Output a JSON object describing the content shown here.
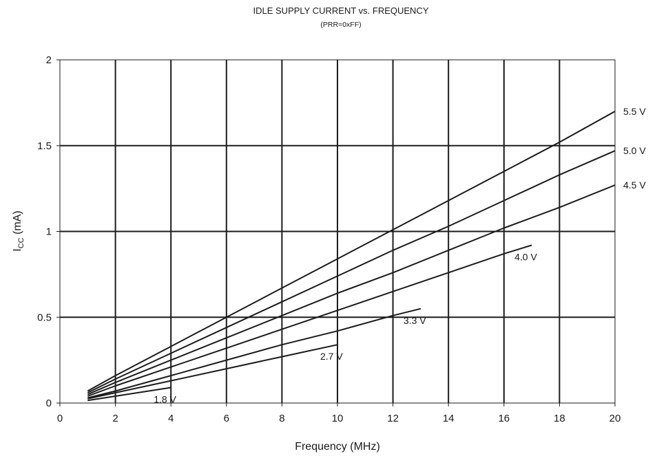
{
  "chart_data": {
    "type": "line",
    "title": "IDLE SUPPLY CURRENT vs. FREQUENCY",
    "subtitle": "(PRR=0xFF)",
    "xlabel": "Frequency (MHz)",
    "ylabel": {
      "main": "I",
      "sub": "CC",
      "unit": " (mA)"
    },
    "xlim": [
      0,
      20
    ],
    "ylim": [
      0,
      2
    ],
    "xticks": [
      "0",
      "2",
      "4",
      "6",
      "8",
      "10",
      "12",
      "14",
      "16",
      "18",
      "20"
    ],
    "yticks": [
      "0",
      "0.5",
      "1",
      "1.5",
      "2"
    ],
    "grid": true,
    "series": [
      {
        "name": "5.5 V",
        "x": [
          1,
          2,
          4,
          6,
          8,
          10,
          12,
          14,
          16,
          18,
          20
        ],
        "y": [
          0.07,
          0.16,
          0.33,
          0.5,
          0.67,
          0.84,
          1.01,
          1.18,
          1.35,
          1.52,
          1.7
        ]
      },
      {
        "name": "5.0 V",
        "x": [
          1,
          2,
          4,
          6,
          8,
          10,
          12,
          14,
          16,
          18,
          20
        ],
        "y": [
          0.06,
          0.14,
          0.29,
          0.44,
          0.59,
          0.74,
          0.89,
          1.03,
          1.18,
          1.33,
          1.47
        ]
      },
      {
        "name": "4.5 V",
        "x": [
          1,
          2,
          4,
          6,
          8,
          10,
          12,
          14,
          16,
          18,
          20
        ],
        "y": [
          0.05,
          0.12,
          0.25,
          0.38,
          0.51,
          0.64,
          0.76,
          0.89,
          1.02,
          1.14,
          1.27
        ]
      },
      {
        "name": "4.0 V",
        "x": [
          1,
          2,
          4,
          6,
          8,
          10,
          12,
          14,
          16,
          17
        ],
        "y": [
          0.04,
          0.1,
          0.21,
          0.32,
          0.43,
          0.54,
          0.65,
          0.76,
          0.87,
          0.92
        ]
      },
      {
        "name": "3.3 V",
        "x": [
          1,
          2,
          4,
          6,
          8,
          10,
          12,
          13
        ],
        "y": [
          0.03,
          0.07,
          0.16,
          0.25,
          0.34,
          0.42,
          0.51,
          0.55
        ]
      },
      {
        "name": "2.7 V",
        "x": [
          1,
          2,
          4,
          6,
          8,
          10
        ],
        "y": [
          0.025,
          0.06,
          0.13,
          0.2,
          0.27,
          0.34
        ]
      },
      {
        "name": "1.8 V",
        "x": [
          1,
          2,
          3,
          4
        ],
        "y": [
          0.015,
          0.04,
          0.065,
          0.09
        ]
      }
    ]
  }
}
